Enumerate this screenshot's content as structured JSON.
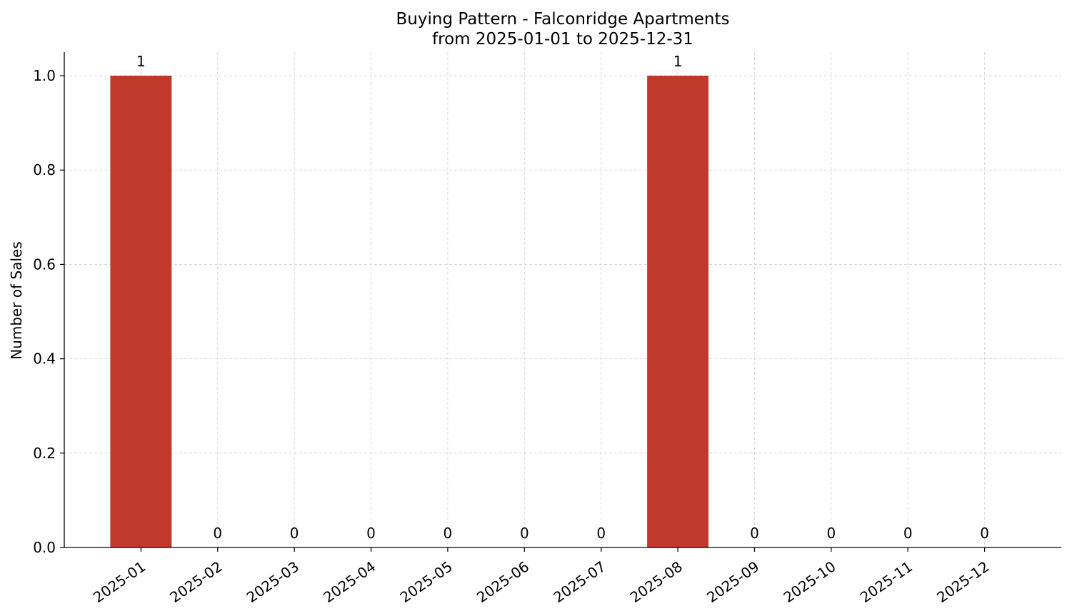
{
  "chart_data": {
    "type": "bar",
    "title": "Buying Pattern - Falconridge Apartments",
    "subtitle": "from 2025-01-01 to 2025-12-31",
    "y_label": "Number of Sales",
    "categories": [
      "2025-01",
      "2025-02",
      "2025-03",
      "2025-04",
      "2025-05",
      "2025-06",
      "2025-07",
      "2025-08",
      "2025-09",
      "2025-10",
      "2025-11",
      "2025-12"
    ],
    "values": [
      1,
      0,
      0,
      0,
      0,
      0,
      0,
      1,
      0,
      0,
      0,
      0
    ],
    "color": "#c0392b",
    "ylim": [
      0,
      1.05
    ],
    "yticks": [
      {
        "value": 0,
        "label": "0.0"
      },
      0.2,
      0.4,
      0.6,
      0.8,
      {
        "value": 1,
        "label": "1.0"
      }
    ],
    "grid": true
  }
}
